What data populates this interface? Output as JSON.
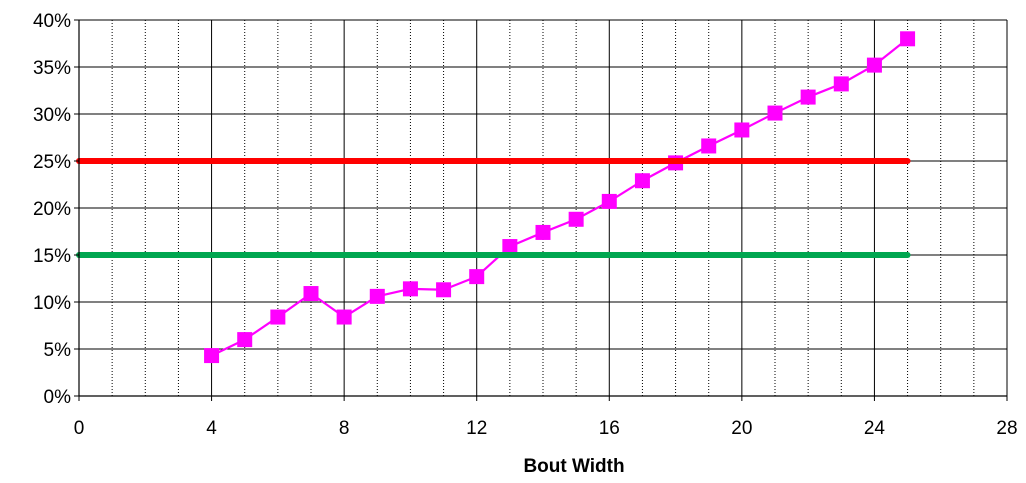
{
  "chart_data": {
    "type": "line",
    "title": "",
    "xlabel": "Bout Width",
    "ylabel": "",
    "xlim": [
      0,
      28
    ],
    "ylim": [
      0,
      0.4
    ],
    "x_ticks": [
      0,
      4,
      8,
      12,
      16,
      20,
      24,
      28
    ],
    "x_tick_labels": [
      "0",
      "4",
      "8",
      "12",
      "16",
      "20",
      "24",
      "28"
    ],
    "x_minor_gridlines": [
      1,
      2,
      3,
      5,
      6,
      7,
      9,
      10,
      11,
      13,
      14,
      15,
      17,
      18,
      19,
      21,
      22,
      23,
      25,
      26,
      27
    ],
    "y_ticks": [
      0,
      0.05,
      0.1,
      0.15,
      0.2,
      0.25,
      0.3,
      0.35,
      0.4
    ],
    "y_tick_labels": [
      "0%",
      "5%",
      "10%",
      "15%",
      "20%",
      "25%",
      "30%",
      "35%",
      "40%"
    ],
    "grid": true,
    "legend": "none",
    "series": [
      {
        "color": "#ff00ff",
        "marker": "square",
        "x": [
          4,
          5,
          6,
          7,
          8,
          9,
          10,
          11,
          12,
          13,
          14,
          15,
          16,
          17,
          18,
          19,
          20,
          21,
          22,
          23,
          24,
          25
        ],
        "y": [
          0.043,
          0.06,
          0.084,
          0.109,
          0.084,
          0.106,
          0.114,
          0.113,
          0.127,
          0.159,
          0.174,
          0.188,
          0.207,
          0.229,
          0.248,
          0.266,
          0.283,
          0.301,
          0.318,
          0.332,
          0.352,
          0.38
        ]
      },
      {
        "color": "#ff0000",
        "marker": "none",
        "x": [
          0,
          25
        ],
        "y": [
          0.25,
          0.25
        ]
      },
      {
        "color": "#00a650",
        "marker": "none",
        "x": [
          0,
          25
        ],
        "y": [
          0.15,
          0.15
        ]
      }
    ]
  }
}
